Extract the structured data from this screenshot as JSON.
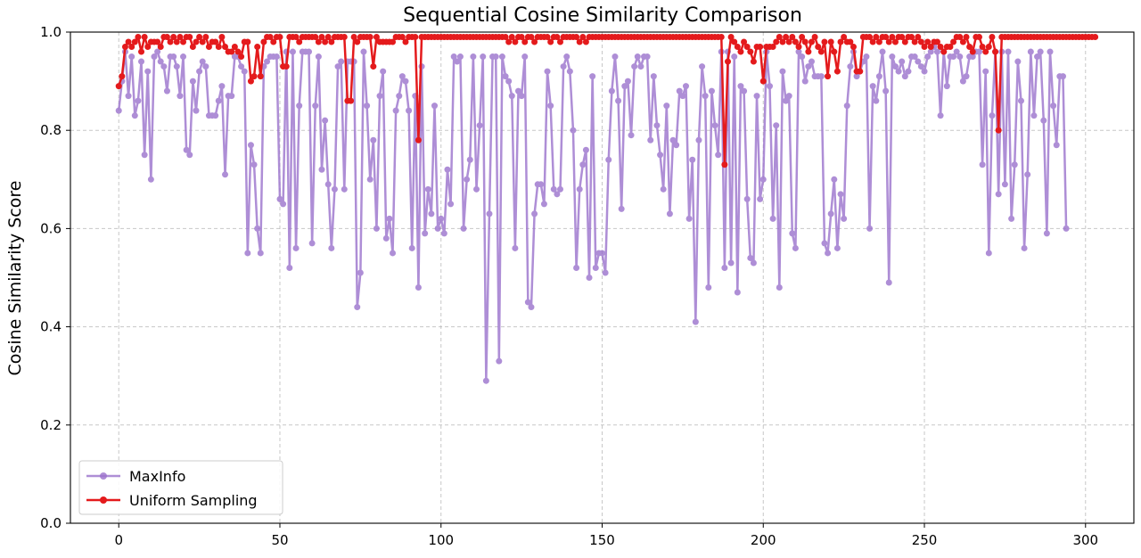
{
  "chart_data": {
    "type": "line",
    "title": "Sequential Cosine Similarity Comparison",
    "xlabel": "",
    "ylabel": "Cosine Similarity Score",
    "xlim": [
      -15,
      315
    ],
    "ylim": [
      0.0,
      1.0
    ],
    "xticks": [
      0,
      50,
      100,
      150,
      200,
      250,
      300
    ],
    "yticks": [
      0.0,
      0.2,
      0.4,
      0.6,
      0.8,
      1.0
    ],
    "xtick_labels": [
      "0",
      "50",
      "100",
      "150",
      "200",
      "250",
      "300"
    ],
    "ytick_labels": [
      "0.0",
      "0.2",
      "0.4",
      "0.6",
      "0.8",
      "1.0"
    ],
    "grid": true,
    "legend_position": "lower-left",
    "series": [
      {
        "name": "MaxInfo",
        "color": "#9b72cc",
        "x_start": 0,
        "values": [
          0.84,
          0.9,
          0.96,
          0.87,
          0.95,
          0.83,
          0.86,
          0.94,
          0.75,
          0.92,
          0.7,
          0.95,
          0.96,
          0.94,
          0.93,
          0.88,
          0.95,
          0.95,
          0.93,
          0.87,
          0.95,
          0.76,
          0.75,
          0.9,
          0.84,
          0.92,
          0.94,
          0.93,
          0.83,
          0.83,
          0.83,
          0.86,
          0.89,
          0.71,
          0.87,
          0.87,
          0.95,
          0.95,
          0.93,
          0.92,
          0.55,
          0.77,
          0.73,
          0.6,
          0.55,
          0.93,
          0.94,
          0.95,
          0.95,
          0.95,
          0.66,
          0.65,
          0.96,
          0.52,
          0.96,
          0.56,
          0.85,
          0.96,
          0.96,
          0.96,
          0.57,
          0.85,
          0.95,
          0.72,
          0.82,
          0.69,
          0.56,
          0.68,
          0.93,
          0.94,
          0.68,
          0.94,
          0.94,
          0.94,
          0.44,
          0.51,
          0.96,
          0.85,
          0.7,
          0.78,
          0.6,
          0.87,
          0.92,
          0.58,
          0.62,
          0.55,
          0.84,
          0.87,
          0.91,
          0.9,
          0.84,
          0.56,
          0.87,
          0.48,
          0.93,
          0.59,
          0.68,
          0.63,
          0.85,
          0.6,
          0.62,
          0.59,
          0.72,
          0.65,
          0.95,
          0.94,
          0.95,
          0.6,
          0.7,
          0.74,
          0.95,
          0.68,
          0.81,
          0.95,
          0.29,
          0.63,
          0.95,
          0.95,
          0.33,
          0.95,
          0.91,
          0.9,
          0.87,
          0.56,
          0.88,
          0.87,
          0.95,
          0.45,
          0.44,
          0.63,
          0.69,
          0.69,
          0.65,
          0.92,
          0.85,
          0.68,
          0.67,
          0.68,
          0.93,
          0.95,
          0.92,
          0.8,
          0.52,
          0.68,
          0.73,
          0.76,
          0.5,
          0.91,
          0.52,
          0.55,
          0.55,
          0.51,
          0.74,
          0.88,
          0.95,
          0.86,
          0.64,
          0.89,
          0.9,
          0.79,
          0.93,
          0.95,
          0.93,
          0.95,
          0.95,
          0.78,
          0.91,
          0.81,
          0.75,
          0.68,
          0.85,
          0.63,
          0.78,
          0.77,
          0.88,
          0.87,
          0.89,
          0.62,
          0.74,
          0.41,
          0.78,
          0.93,
          0.87,
          0.48,
          0.88,
          0.81,
          0.75,
          0.96,
          0.52,
          0.96,
          0.53,
          0.95,
          0.47,
          0.89,
          0.88,
          0.66,
          0.54,
          0.53,
          0.87,
          0.66,
          0.7,
          0.96,
          0.89,
          0.62,
          0.81,
          0.48,
          0.92,
          0.86,
          0.87,
          0.59,
          0.56,
          0.96,
          0.95,
          0.9,
          0.93,
          0.94,
          0.91,
          0.91,
          0.91,
          0.57,
          0.55,
          0.63,
          0.7,
          0.56,
          0.67,
          0.62,
          0.85,
          0.93,
          0.96,
          0.91,
          0.92,
          0.94,
          0.95,
          0.6,
          0.89,
          0.86,
          0.91,
          0.96,
          0.88,
          0.49,
          0.95,
          0.93,
          0.92,
          0.94,
          0.91,
          0.92,
          0.95,
          0.95,
          0.94,
          0.93,
          0.92,
          0.95,
          0.96,
          0.97,
          0.96,
          0.83,
          0.96,
          0.89,
          0.95,
          0.95,
          0.96,
          0.95,
          0.9,
          0.91,
          0.95,
          0.95,
          0.96,
          0.96,
          0.73,
          0.92,
          0.55,
          0.83,
          0.96,
          0.67,
          0.96,
          0.69,
          0.96,
          0.62,
          0.73,
          0.94,
          0.86,
          0.56,
          0.71,
          0.96,
          0.83,
          0.95,
          0.96,
          0.82,
          0.59,
          0.96,
          0.85,
          0.77,
          0.91,
          0.91,
          0.6
        ]
      },
      {
        "name": "Uniform Sampling",
        "color": "#e41a1c",
        "x_start": 0,
        "values": [
          0.89,
          0.91,
          0.97,
          0.98,
          0.97,
          0.98,
          0.99,
          0.96,
          0.99,
          0.97,
          0.98,
          0.98,
          0.98,
          0.97,
          0.99,
          0.99,
          0.98,
          0.99,
          0.98,
          0.99,
          0.98,
          0.99,
          0.99,
          0.97,
          0.98,
          0.99,
          0.98,
          0.99,
          0.97,
          0.98,
          0.98,
          0.97,
          0.99,
          0.97,
          0.96,
          0.96,
          0.97,
          0.96,
          0.95,
          0.98,
          0.98,
          0.9,
          0.91,
          0.97,
          0.91,
          0.98,
          0.99,
          0.99,
          0.98,
          0.99,
          0.99,
          0.93,
          0.93,
          0.99,
          0.99,
          0.99,
          0.98,
          0.99,
          0.99,
          0.99,
          0.99,
          0.99,
          0.98,
          0.99,
          0.98,
          0.99,
          0.98,
          0.99,
          0.99,
          0.99,
          0.99,
          0.86,
          0.86,
          0.99,
          0.98,
          0.99,
          0.99,
          0.99,
          0.99,
          0.93,
          0.99,
          0.98,
          0.98,
          0.98,
          0.98,
          0.98,
          0.99,
          0.99,
          0.99,
          0.98,
          0.99,
          0.99,
          0.99,
          0.78,
          0.99,
          0.99,
          0.99,
          0.99,
          0.99,
          0.99,
          0.99,
          0.99,
          0.99,
          0.99,
          0.99,
          0.99,
          0.99,
          0.99,
          0.99,
          0.99,
          0.99,
          0.99,
          0.99,
          0.99,
          0.99,
          0.99,
          0.99,
          0.99,
          0.99,
          0.99,
          0.99,
          0.98,
          0.99,
          0.98,
          0.99,
          0.99,
          0.98,
          0.99,
          0.99,
          0.98,
          0.99,
          0.99,
          0.99,
          0.99,
          0.98,
          0.99,
          0.99,
          0.98,
          0.99,
          0.99,
          0.99,
          0.99,
          0.99,
          0.98,
          0.99,
          0.98,
          0.99,
          0.99,
          0.99,
          0.99,
          0.99,
          0.99,
          0.99,
          0.99,
          0.99,
          0.99,
          0.99,
          0.99,
          0.99,
          0.99,
          0.99,
          0.99,
          0.99,
          0.99,
          0.99,
          0.99,
          0.99,
          0.99,
          0.99,
          0.99,
          0.99,
          0.99,
          0.99,
          0.99,
          0.99,
          0.99,
          0.99,
          0.99,
          0.99,
          0.99,
          0.99,
          0.99,
          0.99,
          0.99,
          0.99,
          0.99,
          0.99,
          0.99,
          0.73,
          0.94,
          0.99,
          0.98,
          0.97,
          0.96,
          0.98,
          0.97,
          0.96,
          0.94,
          0.97,
          0.97,
          0.9,
          0.97,
          0.97,
          0.97,
          0.98,
          0.99,
          0.98,
          0.99,
          0.98,
          0.99,
          0.98,
          0.97,
          0.99,
          0.98,
          0.96,
          0.98,
          0.99,
          0.97,
          0.96,
          0.98,
          0.91,
          0.98,
          0.96,
          0.92,
          0.98,
          0.99,
          0.98,
          0.98,
          0.97,
          0.92,
          0.92,
          0.99,
          0.99,
          0.99,
          0.98,
          0.99,
          0.98,
          0.99,
          0.99,
          0.98,
          0.99,
          0.98,
          0.99,
          0.99,
          0.98,
          0.99,
          0.99,
          0.98,
          0.99,
          0.98,
          0.97,
          0.98,
          0.97,
          0.98,
          0.98,
          0.97,
          0.96,
          0.97,
          0.97,
          0.98,
          0.99,
          0.99,
          0.98,
          0.99,
          0.97,
          0.96,
          0.99,
          0.99,
          0.97,
          0.96,
          0.97,
          0.99,
          0.96,
          0.8,
          0.99,
          0.99,
          0.99,
          0.99,
          0.99,
          0.99,
          0.99,
          0.99,
          0.99,
          0.99,
          0.99,
          0.99,
          0.99,
          0.99,
          0.99,
          0.99,
          0.99,
          0.99,
          0.99,
          0.99,
          0.99,
          0.99,
          0.99,
          0.99,
          0.99,
          0.99,
          0.99,
          0.99,
          0.99,
          0.99
        ]
      }
    ]
  }
}
